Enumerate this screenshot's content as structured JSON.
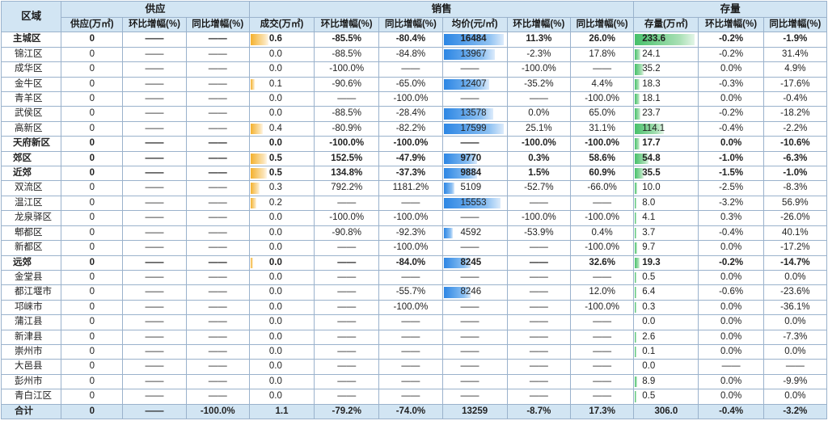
{
  "headers": {
    "region": "区域",
    "groups": {
      "supply": "供应",
      "sales": "销售",
      "stock": "存量"
    },
    "sub": [
      "供应(万㎡)",
      "环比增幅(%)",
      "同比增幅(%)",
      "成交(万㎡)",
      "环比增幅(%)",
      "同比增幅(%)",
      "均价(元/㎡)",
      "环比增幅(%)",
      "同比增幅(%)",
      "存量(万㎡)",
      "环比增幅(%)",
      "同比增幅(%)"
    ]
  },
  "colors": {
    "header_bg": "#d2e5f3",
    "grid": "#9ab2cc",
    "sales_bar": "#f4b12e",
    "price_bar": "#2c86e4",
    "stock_bar": "#46c06a"
  },
  "rows": [
    {
      "bold": true,
      "cells": [
        "主城区",
        "0",
        "——",
        "——",
        "0.6",
        "-85.5%",
        "-80.4%",
        "16484",
        "11.3%",
        "26.0%",
        "233.6",
        "-0.2%",
        "-1.9%"
      ],
      "bars": [
        0.3,
        1.0,
        1.0
      ]
    },
    {
      "bold": false,
      "cells": [
        "锦江区",
        "0",
        "——",
        "——",
        "0.0",
        "-88.5%",
        "-84.8%",
        "13967",
        "-2.3%",
        "17.8%",
        "24.1",
        "-0.2%",
        "31.4%"
      ],
      "bars": [
        0.0,
        0.85,
        0.1
      ]
    },
    {
      "bold": false,
      "cells": [
        "成华区",
        "0",
        "——",
        "——",
        "0.0",
        "-100.0%",
        "——",
        "——",
        "-100.0%",
        "——",
        "35.2",
        "0.0%",
        "4.9%"
      ],
      "bars": [
        0.0,
        0.0,
        0.15
      ]
    },
    {
      "bold": false,
      "cells": [
        "金牛区",
        "0",
        "——",
        "——",
        "0.1",
        "-90.6%",
        "-65.0%",
        "12407",
        "-35.2%",
        "4.4%",
        "18.3",
        "-0.3%",
        "-17.6%"
      ],
      "bars": [
        0.07,
        0.75,
        0.08
      ]
    },
    {
      "bold": false,
      "cells": [
        "青羊区",
        "0",
        "——",
        "——",
        "0.0",
        "——",
        "-100.0%",
        "——",
        "——",
        "-100.0%",
        "18.1",
        "0.0%",
        "-0.4%"
      ],
      "bars": [
        0.0,
        0.0,
        0.08
      ]
    },
    {
      "bold": false,
      "cells": [
        "武侯区",
        "0",
        "——",
        "——",
        "0.0",
        "-88.5%",
        "-28.4%",
        "13578",
        "0.0%",
        "65.0%",
        "23.7",
        "-0.2%",
        "-18.2%"
      ],
      "bars": [
        0.0,
        0.82,
        0.1
      ]
    },
    {
      "bold": false,
      "cells": [
        "高新区",
        "0",
        "——",
        "——",
        "0.4",
        "-80.9%",
        "-82.2%",
        "17599",
        "25.1%",
        "31.1%",
        "114.1",
        "-0.4%",
        "-2.2%"
      ],
      "bars": [
        0.2,
        1.0,
        0.49
      ]
    },
    {
      "bold": true,
      "cells": [
        "天府新区",
        "0",
        "——",
        "——",
        "0.0",
        "-100.0%",
        "-100.0%",
        "——",
        "-100.0%",
        "-100.0%",
        "17.7",
        "0.0%",
        "-10.6%"
      ],
      "bars": [
        0.0,
        0.0,
        0.08
      ]
    },
    {
      "bold": true,
      "cells": [
        "郊区",
        "0",
        "——",
        "——",
        "0.5",
        "152.5%",
        "-47.9%",
        "9770",
        "0.3%",
        "58.6%",
        "54.8",
        "-1.0%",
        "-6.3%"
      ],
      "bars": [
        0.27,
        0.55,
        0.23
      ]
    },
    {
      "bold": true,
      "cells": [
        "近郊",
        "0",
        "——",
        "——",
        "0.5",
        "134.8%",
        "-37.3%",
        "9884",
        "1.5%",
        "60.9%",
        "35.5",
        "-1.5%",
        "-1.0%"
      ],
      "bars": [
        0.27,
        0.56,
        0.15
      ]
    },
    {
      "bold": false,
      "cells": [
        "双流区",
        "0",
        "——",
        "——",
        "0.3",
        "792.2%",
        "1181.2%",
        "5109",
        "-52.7%",
        "-66.0%",
        "10.0",
        "-2.5%",
        "-8.3%"
      ],
      "bars": [
        0.15,
        0.18,
        0.04
      ]
    },
    {
      "bold": false,
      "cells": [
        "温江区",
        "0",
        "——",
        "——",
        "0.2",
        "——",
        "——",
        "15553",
        "——",
        "——",
        "8.0",
        "-3.2%",
        "56.9%"
      ],
      "bars": [
        0.1,
        0.95,
        0.03
      ]
    },
    {
      "bold": false,
      "cells": [
        "龙泉驿区",
        "0",
        "——",
        "——",
        "0.0",
        "-100.0%",
        "-100.0%",
        "——",
        "-100.0%",
        "-100.0%",
        "4.1",
        "0.3%",
        "-26.0%"
      ],
      "bars": [
        0.0,
        0.0,
        0.02
      ]
    },
    {
      "bold": false,
      "cells": [
        "郫都区",
        "0",
        "——",
        "——",
        "0.0",
        "-90.8%",
        "-92.3%",
        "4592",
        "-53.9%",
        "0.4%",
        "3.7",
        "-0.4%",
        "40.1%"
      ],
      "bars": [
        0.0,
        0.15,
        0.02
      ]
    },
    {
      "bold": false,
      "cells": [
        "新都区",
        "0",
        "——",
        "——",
        "0.0",
        "——",
        "-100.0%",
        "——",
        "——",
        "-100.0%",
        "9.7",
        "0.0%",
        "-17.2%"
      ],
      "bars": [
        0.0,
        0.0,
        0.04
      ]
    },
    {
      "bold": true,
      "cells": [
        "远郊",
        "0",
        "——",
        "——",
        "0.0",
        "——",
        "-84.0%",
        "8245",
        "——",
        "32.6%",
        "19.3",
        "-0.2%",
        "-14.7%"
      ],
      "bars": [
        0.04,
        0.45,
        0.08
      ]
    },
    {
      "bold": false,
      "cells": [
        "金堂县",
        "0",
        "——",
        "——",
        "0.0",
        "——",
        "——",
        "——",
        "——",
        "——",
        "0.5",
        "0.0%",
        "0.0%"
      ],
      "bars": [
        0.0,
        0.0,
        0.01
      ]
    },
    {
      "bold": false,
      "cells": [
        "都江堰市",
        "0",
        "——",
        "——",
        "0.0",
        "——",
        "-55.7%",
        "8246",
        "——",
        "12.0%",
        "6.4",
        "-0.6%",
        "-23.6%"
      ],
      "bars": [
        0.0,
        0.45,
        0.03
      ]
    },
    {
      "bold": false,
      "cells": [
        "邛崃市",
        "0",
        "——",
        "——",
        "0.0",
        "——",
        "-100.0%",
        "——",
        "——",
        "-100.0%",
        "0.3",
        "0.0%",
        "-36.1%"
      ],
      "bars": [
        0.0,
        0.0,
        0.01
      ]
    },
    {
      "bold": false,
      "cells": [
        "蒲江县",
        "0",
        "——",
        "——",
        "0.0",
        "——",
        "——",
        "——",
        "——",
        "——",
        "0.0",
        "0.0%",
        "0.0%"
      ],
      "bars": [
        0.0,
        0.0,
        0.0
      ]
    },
    {
      "bold": false,
      "cells": [
        "新津县",
        "0",
        "——",
        "——",
        "0.0",
        "——",
        "——",
        "——",
        "——",
        "——",
        "2.6",
        "0.0%",
        "-7.3%"
      ],
      "bars": [
        0.0,
        0.0,
        0.01
      ]
    },
    {
      "bold": false,
      "cells": [
        "崇州市",
        "0",
        "——",
        "——",
        "0.0",
        "——",
        "——",
        "——",
        "——",
        "——",
        "0.1",
        "0.0%",
        "0.0%"
      ],
      "bars": [
        0.0,
        0.0,
        0.01
      ]
    },
    {
      "bold": false,
      "cells": [
        "大邑县",
        "0",
        "——",
        "——",
        "0.0",
        "——",
        "——",
        "——",
        "——",
        "——",
        "0.0",
        "——",
        "——"
      ],
      "bars": [
        0.0,
        0.0,
        0.0
      ]
    },
    {
      "bold": false,
      "cells": [
        "彭州市",
        "0",
        "——",
        "——",
        "0.0",
        "——",
        "——",
        "——",
        "——",
        "——",
        "8.9",
        "0.0%",
        "-9.9%"
      ],
      "bars": [
        0.0,
        0.0,
        0.04
      ]
    },
    {
      "bold": false,
      "cells": [
        "青白江区",
        "0",
        "——",
        "——",
        "0.0",
        "——",
        "——",
        "——",
        "——",
        "——",
        "0.5",
        "0.0%",
        "0.0%"
      ],
      "bars": [
        0.0,
        0.0,
        0.01
      ]
    }
  ],
  "total": {
    "cells": [
      "合计",
      "0",
      "——",
      "-100.0%",
      "1.1",
      "-79.2%",
      "-74.0%",
      "13259",
      "-8.7%",
      "17.3%",
      "306.0",
      "-0.4%",
      "-3.2%"
    ]
  }
}
